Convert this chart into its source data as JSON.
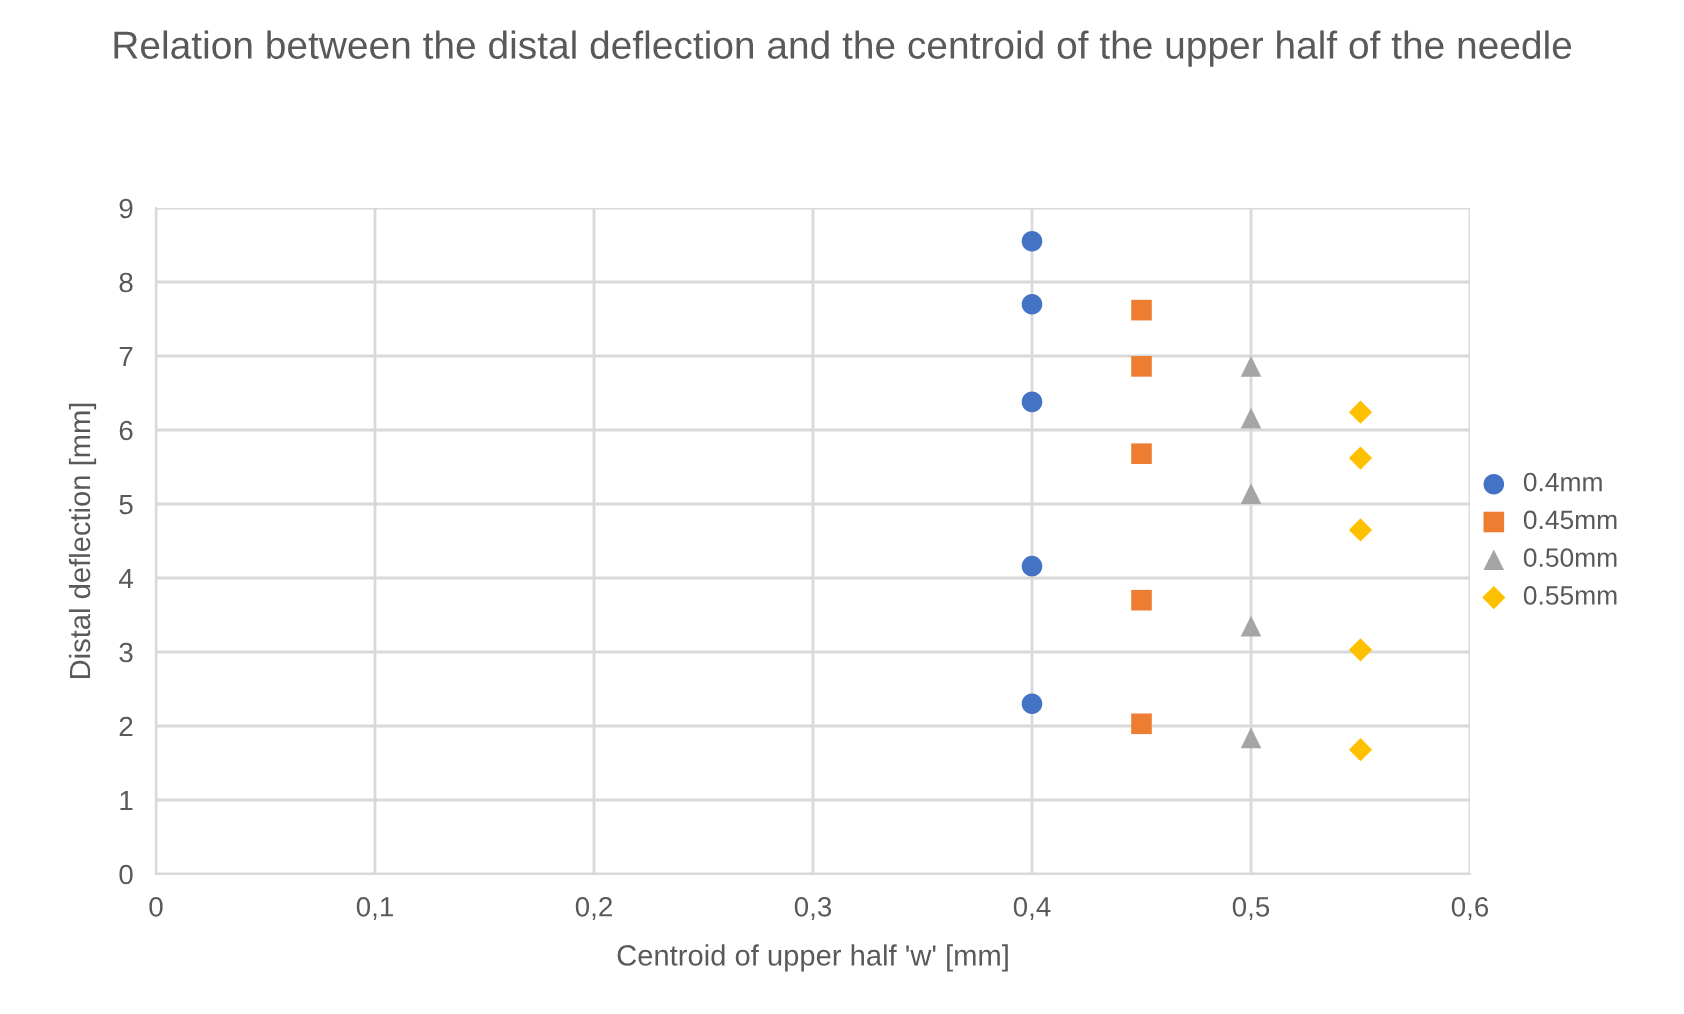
{
  "chart_data": {
    "type": "scatter",
    "title": "Relation between the distal deflection and the centroid of the upper half of the needle",
    "xlabel": "Centroid of upper half 'w' [mm]",
    "ylabel": "Distal deflection [mm]",
    "series": [
      {
        "name": "0.4mm",
        "color": "#4472c4",
        "marker": "circle",
        "x": [
          0.4,
          0.4,
          0.4,
          0.4,
          0.4
        ],
        "values": [
          8.55,
          7.7,
          6.38,
          4.16,
          2.3
        ]
      },
      {
        "name": "0.45mm",
        "color": "#ed7d31",
        "marker": "square",
        "x": [
          0.45,
          0.45,
          0.45,
          0.45,
          0.45
        ],
        "values": [
          7.62,
          6.86,
          5.68,
          3.7,
          2.03
        ]
      },
      {
        "name": "0.50mm",
        "color": "#a5a5a5",
        "marker": "triangle",
        "x": [
          0.5,
          0.5,
          0.5,
          0.5,
          0.5
        ],
        "values": [
          6.86,
          6.16,
          5.14,
          3.35,
          1.84
        ]
      },
      {
        "name": "0.55mm",
        "color": "#ffc000",
        "marker": "diamond",
        "x": [
          0.55,
          0.55,
          0.55,
          0.55,
          0.55
        ],
        "values": [
          6.24,
          5.62,
          4.65,
          3.03,
          1.68
        ]
      }
    ],
    "xlim": [
      0,
      0.6
    ],
    "xticks": [
      0,
      {
        "value": 0.1,
        "label": "0,1"
      },
      {
        "value": 0.2,
        "label": "0,2"
      },
      {
        "value": 0.3,
        "label": "0,3"
      },
      {
        "value": 0.4,
        "label": "0,4"
      },
      {
        "value": 0.5,
        "label": "0,5"
      },
      {
        "value": 0.6,
        "label": "0,6"
      }
    ],
    "ylim": [
      0,
      9
    ],
    "yticks": [
      0,
      1,
      2,
      3,
      4,
      5,
      6,
      7,
      8,
      9
    ],
    "grid": true,
    "legend": "right"
  }
}
